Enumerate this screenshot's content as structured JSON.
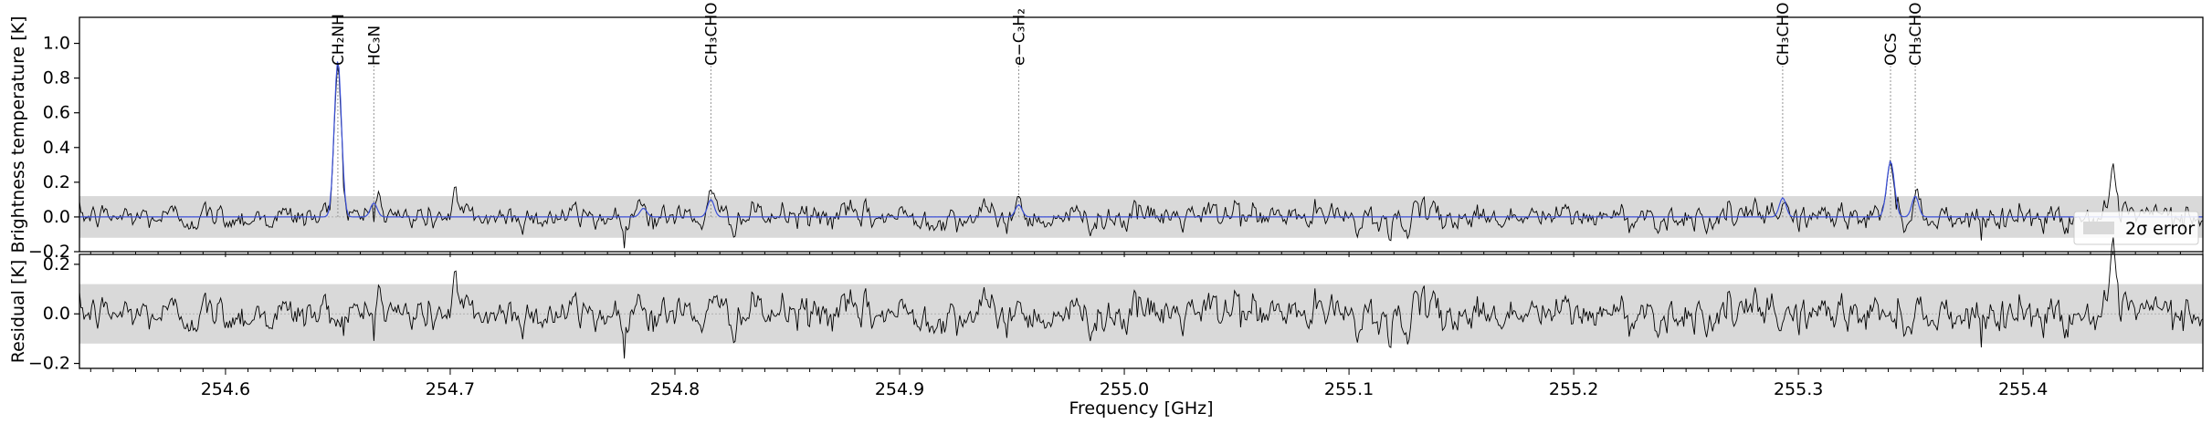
{
  "chart_data": [
    {
      "type": "line",
      "panel": "spectrum",
      "ylabel": "Brightness temperature [K]",
      "xlim": [
        254.535,
        255.48
      ],
      "ylim": [
        -0.2,
        1.15
      ],
      "yticks": [
        -0.2,
        0.0,
        0.2,
        0.4,
        0.6,
        0.8,
        1.0
      ],
      "ytick_labels": [
        "−0.2",
        "0.0",
        "0.2",
        "0.4",
        "0.6",
        "0.8",
        "1.0"
      ],
      "error_band": [
        -0.12,
        0.12
      ],
      "legend": {
        "label": "2σ error",
        "placement": "lower-right",
        "color": "#d9d9d9"
      },
      "series": [
        {
          "role": "observed",
          "color": "#000000",
          "noise_sigma": 0.055
        },
        {
          "role": "model",
          "color": "#3a4fd8",
          "peaks": [
            {
              "x": 254.65,
              "y": 0.9,
              "width": 0.0016
            },
            {
              "x": 254.666,
              "y": 0.08,
              "width": 0.0015
            },
            {
              "x": 254.786,
              "y": 0.05,
              "width": 0.0015
            },
            {
              "x": 254.816,
              "y": 0.1,
              "width": 0.0015
            },
            {
              "x": 254.953,
              "y": 0.07,
              "width": 0.0015
            },
            {
              "x": 255.293,
              "y": 0.11,
              "width": 0.0015
            },
            {
              "x": 255.341,
              "y": 0.32,
              "width": 0.0017
            },
            {
              "x": 255.352,
              "y": 0.12,
              "width": 0.0015
            }
          ]
        }
      ],
      "annotations": [
        {
          "x": 254.65,
          "text": "CH₂NH"
        },
        {
          "x": 254.666,
          "text": "HC₃N"
        },
        {
          "x": 254.816,
          "text": "CH₃CHO"
        },
        {
          "x": 254.953,
          "text": "e−C₃H₂"
        },
        {
          "x": 255.293,
          "text": "CH₃CHO"
        },
        {
          "x": 255.341,
          "text": "OCS"
        },
        {
          "x": 255.352,
          "text": "CH₃CHO"
        }
      ]
    },
    {
      "type": "line",
      "panel": "residual",
      "xlabel": "Frequency [GHz]",
      "ylabel": "Residual [K]",
      "xlim": [
        254.535,
        255.48
      ],
      "ylim": [
        -0.22,
        0.24
      ],
      "yticks": [
        -0.2,
        0.0,
        0.2
      ],
      "ytick_labels": [
        "−0.2",
        "0.0",
        "0.2"
      ],
      "xticks": [
        254.6,
        254.7,
        254.8,
        254.9,
        255.0,
        255.1,
        255.2,
        255.3,
        255.4
      ],
      "xtick_labels": [
        "254.6",
        "254.7",
        "254.8",
        "254.9",
        "255.0",
        "255.1",
        "255.2",
        "255.3",
        "255.4"
      ],
      "error_band": [
        -0.12,
        0.12
      ],
      "series": [
        {
          "role": "residual",
          "color": "#000000",
          "noise_sigma": 0.055
        }
      ]
    }
  ]
}
